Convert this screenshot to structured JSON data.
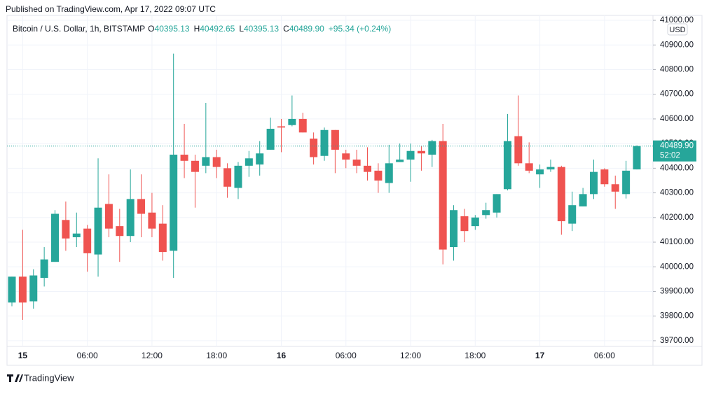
{
  "header": {
    "published": "Published on TradingView.com, Apr 17, 2022 09:07 UTC"
  },
  "footer": {
    "brand": "TradingView"
  },
  "chart_data": {
    "type": "candlestick",
    "title": "Bitcoin / U.S. Dollar, 1h, BITSTAMP",
    "legend_ohlc": [
      {
        "key": "O",
        "value": "40395.13"
      },
      {
        "key": "H",
        "value": "40492.65"
      },
      {
        "key": "L",
        "value": "40395.13"
      },
      {
        "key": "C",
        "value": "40489.90"
      }
    ],
    "change": "+95.34 (+0.24%)",
    "currency": "USD",
    "last_price_label": "40489.90",
    "countdown": "52:02",
    "up_color": "#26a69a",
    "down_color": "#ef5350",
    "grid": true,
    "x": [
      null,
      "15",
      null,
      null,
      null,
      null,
      null,
      "06:00",
      null,
      null,
      null,
      null,
      null,
      "12:00",
      null,
      null,
      null,
      null,
      null,
      "18:00",
      null,
      null,
      null,
      null,
      null,
      "16",
      null,
      null,
      null,
      null,
      null,
      "06:00",
      null,
      null,
      null,
      null,
      null,
      "12:00",
      null,
      null,
      null,
      null,
      null,
      "18:00",
      null,
      null,
      null,
      null,
      null,
      "17",
      null,
      null,
      null,
      null,
      null,
      "06:00",
      null,
      null,
      null
    ],
    "open": [
      39855,
      39960,
      39860,
      39955,
      40020,
      40190,
      40120,
      40155,
      40050,
      40255,
      40165,
      40125,
      40275,
      40220,
      40175,
      40065,
      40455,
      40430,
      40410,
      40445,
      40400,
      40320,
      40410,
      40415,
      40475,
      40570,
      40575,
      40600,
      40520,
      40450,
      40555,
      40460,
      40435,
      40410,
      40390,
      40340,
      40425,
      40435,
      40470,
      40455,
      40510,
      40080,
      40205,
      40165,
      40210,
      40220,
      40315,
      40530,
      40420,
      40375,
      40395,
      40405,
      40175,
      40245,
      40295,
      40395,
      40335,
      40295,
      40395.13
    ],
    "high": [
      39960,
      40150,
      39990,
      40080,
      40230,
      40265,
      40220,
      40170,
      40440,
      40375,
      40235,
      40395,
      40375,
      40300,
      40250,
      40865,
      40580,
      40455,
      40665,
      40475,
      40420,
      40425,
      40470,
      40510,
      40605,
      40600,
      40695,
      40625,
      40545,
      40565,
      40555,
      40475,
      40475,
      40485,
      40420,
      40495,
      40500,
      40500,
      40490,
      40515,
      40580,
      40250,
      40235,
      40210,
      40260,
      40295,
      40620,
      40695,
      40505,
      40415,
      40435,
      40410,
      40305,
      40320,
      40435,
      40400,
      40370,
      40430,
      40492.65
    ],
    "low": [
      39840,
      39785,
      39830,
      39920,
      40020,
      40065,
      40080,
      39980,
      39960,
      40120,
      40020,
      40100,
      40120,
      40120,
      40025,
      39955,
      40360,
      40240,
      40380,
      40360,
      40280,
      40275,
      40365,
      40370,
      40475,
      40465,
      40570,
      40545,
      40415,
      40430,
      40380,
      40400,
      40380,
      40350,
      40300,
      40300,
      40425,
      40345,
      40390,
      40405,
      40010,
      40025,
      40100,
      40150,
      40195,
      40200,
      40310,
      40410,
      40380,
      40320,
      40385,
      40130,
      40145,
      40245,
      40275,
      40325,
      40235,
      40277,
      40395.13
    ],
    "close": [
      39960,
      39855,
      39965,
      40030,
      40215,
      40115,
      40135,
      40055,
      40240,
      40155,
      40125,
      40275,
      40215,
      40155,
      40060,
      40455,
      40430,
      40385,
      40445,
      40405,
      40325,
      40410,
      40440,
      40460,
      40560,
      40565,
      40600,
      40545,
      40445,
      40555,
      40475,
      40435,
      40410,
      40385,
      40350,
      40420,
      40435,
      40470,
      40460,
      40510,
      40070,
      40230,
      40145,
      40200,
      40230,
      40295,
      40510,
      40420,
      40390,
      40395,
      40405,
      40185,
      40250,
      40295,
      40385,
      40335,
      40305,
      40390,
      40489.9
    ],
    "ylim": [
      39677,
      41020
    ],
    "yticks": [
      {
        "value": 39700,
        "label": "39700.00"
      },
      {
        "value": 39800,
        "label": "39800.00"
      },
      {
        "value": 39900,
        "label": "39900.00"
      },
      {
        "value": 40000,
        "label": "40000.00"
      },
      {
        "value": 40100,
        "label": "40100.00"
      },
      {
        "value": 40200,
        "label": "40200.00"
      },
      {
        "value": 40300,
        "label": "40300.00"
      },
      {
        "value": 40400,
        "label": "40400.00"
      },
      {
        "value": 40500,
        "label": "40500.00"
      },
      {
        "value": 40600,
        "label": "40600.00"
      },
      {
        "value": 40700,
        "label": "40700.00"
      },
      {
        "value": 40800,
        "label": "40800.00"
      },
      {
        "value": 40900,
        "label": "40900.00"
      },
      {
        "value": 41000,
        "label": "41000.00"
      }
    ]
  }
}
